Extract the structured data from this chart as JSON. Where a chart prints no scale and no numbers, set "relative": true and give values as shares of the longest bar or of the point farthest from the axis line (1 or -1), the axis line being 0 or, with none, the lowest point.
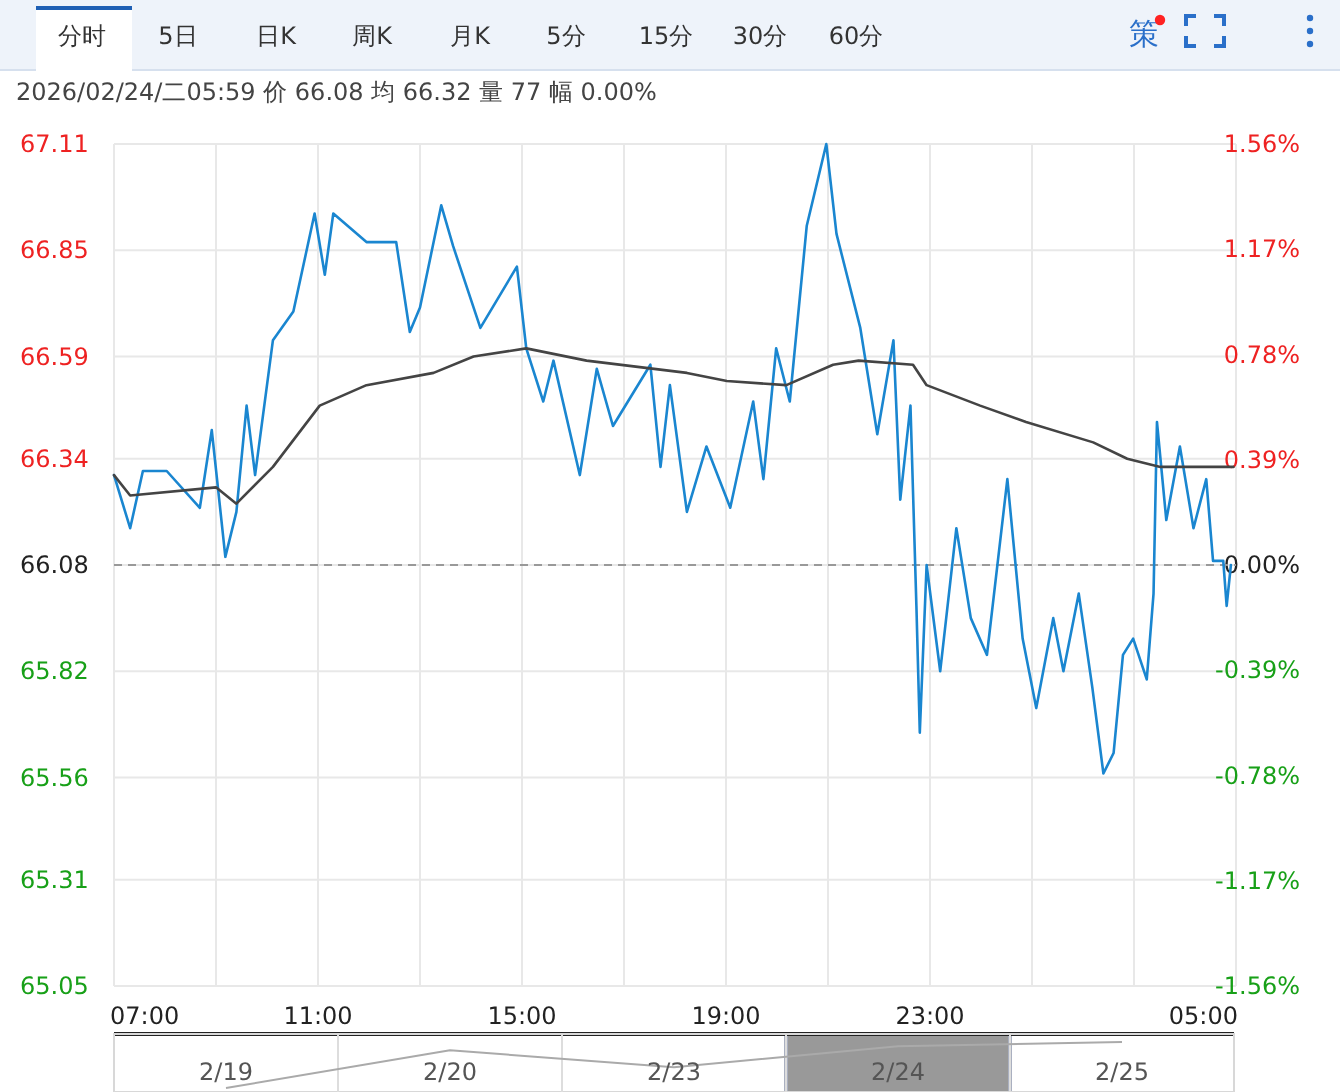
{
  "chart_data": [
    {
      "type": "line",
      "annotations": [
        "分时",
        "5日",
        "日K",
        "周K",
        "月K",
        "5分",
        "15分",
        "30分",
        "60分",
        "策",
        "2026/02/24/二05:59  价 66.08  均 66.32  量 77  幅 0.00%"
      ],
      "xlim": [
        "2026-02-23T07:00",
        "2026-02-24T05:00"
      ],
      "xticks": [
        {
          "value": "2026-02-23T07:00",
          "label": "07:00"
        },
        {
          "value": "2026-02-23T09:00",
          "label": null
        },
        {
          "value": "2026-02-23T11:00",
          "label": "11:00"
        },
        {
          "value": "2026-02-23T13:00",
          "label": null
        },
        {
          "value": "2026-02-23T15:00",
          "label": "15:00"
        },
        {
          "value": "2026-02-23T17:00",
          "label": null
        },
        {
          "value": "2026-02-23T19:00",
          "label": "19:00"
        },
        {
          "value": "2026-02-23T21:00",
          "label": null
        },
        {
          "value": "2026-02-23T23:00",
          "label": "23:00"
        },
        {
          "value": "2026-02-24T01:00",
          "label": null
        },
        {
          "value": "2026-02-24T03:00",
          "label": null
        },
        {
          "value": "2026-02-24T05:00",
          "label": "05:00"
        }
      ],
      "ylim": [
        65.05,
        67.11
      ],
      "yticks": [
        65.05,
        65.31,
        65.56,
        65.82,
        66.08,
        66.34,
        66.59,
        66.85,
        67.11
      ],
      "y2lim": [
        -1.56,
        1.56
      ],
      "y2ticks": [
        {
          "value": -1.56,
          "label": "-1.56%"
        },
        {
          "value": -1.17,
          "label": "-1.17%"
        },
        {
          "value": -0.78,
          "label": "-0.78%"
        },
        {
          "value": -0.39,
          "label": "-0.39%"
        },
        {
          "value": 0,
          "label": "0.00%"
        },
        {
          "value": 0.39,
          "label": "0.39%"
        },
        {
          "value": 0.78,
          "label": "0.78%"
        },
        {
          "value": 1.17,
          "label": "1.17%"
        },
        {
          "value": 1.56,
          "label": "1.56%"
        }
      ],
      "grid": true,
      "ref_lines": [
        {
          "axis": "y",
          "value": 66.08,
          "color": "#999999",
          "line_style": "dashed"
        }
      ],
      "series": [
        {
          "color": "#1a86d0",
          "x": [
            "2026-02-23T07:00",
            "2026-02-23T07:19",
            "2026-02-23T07:34",
            "2026-02-23T08:02",
            "2026-02-23T08:41",
            "2026-02-23T08:55",
            "2026-02-23T09:11",
            "2026-02-23T09:24",
            "2026-02-23T09:36",
            "2026-02-23T09:46",
            "2026-02-23T10:07",
            "2026-02-23T10:31",
            "2026-02-23T10:56",
            "2026-02-23T11:08",
            "2026-02-23T11:18",
            "2026-02-23T11:57",
            "2026-02-23T12:32",
            "2026-02-23T12:48",
            "2026-02-23T13:00",
            "2026-02-23T13:25",
            "2026-02-23T13:39",
            "2026-02-23T14:11",
            "2026-02-23T14:54",
            "2026-02-23T15:05",
            "2026-02-23T15:25",
            "2026-02-23T15:37",
            "2026-02-23T16:08",
            "2026-02-23T16:28",
            "2026-02-23T16:47",
            "2026-02-23T17:31",
            "2026-02-23T17:43",
            "2026-02-23T17:54",
            "2026-02-23T18:14",
            "2026-02-23T18:37",
            "2026-02-23T19:05",
            "2026-02-23T19:32",
            "2026-02-23T19:44",
            "2026-02-23T19:59",
            "2026-02-23T20:15",
            "2026-02-23T20:35",
            "2026-02-23T20:58",
            "2026-02-23T21:10",
            "2026-02-23T21:38",
            "2026-02-23T21:58",
            "2026-02-23T22:17",
            "2026-02-23T22:25",
            "2026-02-23T22:37",
            "2026-02-23T22:44",
            "2026-02-23T22:48",
            "2026-02-23T22:56",
            "2026-02-23T23:12",
            "2026-02-23T23:31",
            "2026-02-23T23:48",
            "2026-02-24T00:07",
            "2026-02-24T00:31",
            "2026-02-24T00:49",
            "2026-02-24T01:05",
            "2026-02-24T01:25",
            "2026-02-24T01:37",
            "2026-02-24T01:55",
            "2026-02-24T02:11",
            "2026-02-24T02:24",
            "2026-02-24T02:36",
            "2026-02-24T02:47",
            "2026-02-24T02:59",
            "2026-02-24T03:15",
            "2026-02-24T03:23",
            "2026-02-24T03:27",
            "2026-02-24T03:38",
            "2026-02-24T03:54",
            "2026-02-24T04:10",
            "2026-02-24T04:25",
            "2026-02-24T04:33",
            "2026-02-24T04:45",
            "2026-02-24T04:49",
            "2026-02-24T04:54"
          ],
          "values": [
            66.3,
            66.17,
            66.31,
            66.31,
            66.22,
            66.41,
            66.1,
            66.21,
            66.47,
            66.3,
            66.63,
            66.7,
            66.94,
            66.79,
            66.94,
            66.87,
            66.87,
            66.65,
            66.71,
            66.96,
            66.86,
            66.66,
            66.81,
            66.61,
            66.48,
            66.58,
            66.3,
            66.56,
            66.42,
            66.57,
            66.32,
            66.52,
            66.21,
            66.37,
            66.22,
            66.48,
            66.29,
            66.61,
            66.48,
            66.91,
            67.11,
            66.89,
            66.66,
            66.4,
            66.63,
            66.24,
            66.47,
            65.98,
            65.67,
            66.08,
            65.82,
            66.17,
            65.95,
            65.86,
            66.29,
            65.9,
            65.73,
            65.95,
            65.82,
            66.01,
            65.78,
            65.57,
            65.62,
            65.86,
            65.9,
            65.8,
            66.01,
            66.43,
            66.19,
            66.37,
            66.17,
            66.29,
            66.09,
            66.09,
            65.98,
            66.08
          ]
        },
        {
          "color": "#444444",
          "x": [
            "2026-02-23T07:00",
            "2026-02-23T07:19",
            "2026-02-23T09:00",
            "2026-02-23T09:24",
            "2026-02-23T10:07",
            "2026-02-23T11:02",
            "2026-02-23T11:57",
            "2026-02-23T13:16",
            "2026-02-23T14:03",
            "2026-02-23T15:05",
            "2026-02-23T16:16",
            "2026-02-23T18:14",
            "2026-02-23T19:01",
            "2026-02-23T20:11",
            "2026-02-23T21:06",
            "2026-02-23T21:36",
            "2026-02-23T22:40",
            "2026-02-23T22:56",
            "2026-02-23T23:59",
            "2026-02-24T00:53",
            "2026-02-24T02:12",
            "2026-02-24T02:52",
            "2026-02-24T03:31",
            "2026-02-24T04:57"
          ],
          "values": [
            66.3,
            66.25,
            66.27,
            66.23,
            66.32,
            66.47,
            66.52,
            66.55,
            66.59,
            66.61,
            66.58,
            66.55,
            66.53,
            66.52,
            66.57,
            66.58,
            66.57,
            66.52,
            66.47,
            66.43,
            66.38,
            66.34,
            66.32,
            66.32
          ]
        }
      ]
    },
    {
      "type": "line",
      "relative": true,
      "categories": [
        "2/19",
        "2/20",
        "2/23",
        "2/24",
        "2/25"
      ],
      "values": [
        0,
        0.82,
        0.45,
        0.91,
        1
      ],
      "color": "#aaaaaa",
      "bands": [
        {
          "axis": "x",
          "from": "2/24",
          "to": "2/24",
          "color": "#999999"
        }
      ]
    }
  ]
}
